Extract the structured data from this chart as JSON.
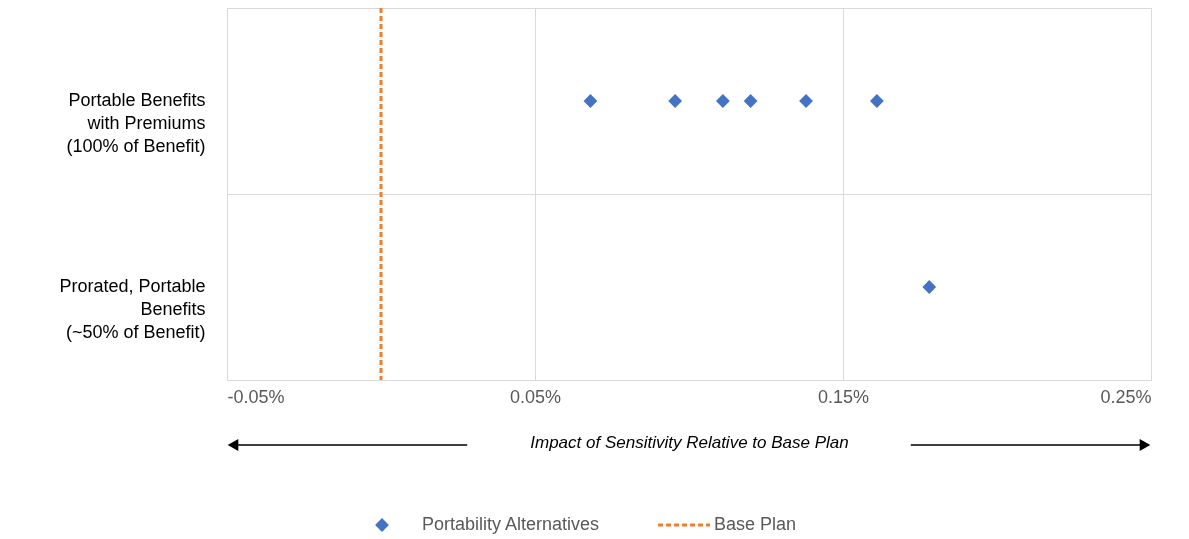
{
  "chart_data": {
    "type": "scatter",
    "categories": [
      "Portable Benefits with Premiums (100% of Benefit)",
      "Prorated, Portable Benefits (~50% of Benefit)"
    ],
    "series": [
      {
        "name": "Portability Alternatives",
        "color": "#4472c4",
        "values": [
          0.068,
          0.0955,
          0.111,
          0.12,
          0.138,
          0.161,
          0.178
        ],
        "x": [
          "Portable Benefits with Premiums (100% of Benefit)",
          "Portable Benefits with Premiums (100% of Benefit)",
          "Portable Benefits with Premiums (100% of Benefit)",
          "Portable Benefits with Premiums (100% of Benefit)",
          "Portable Benefits with Premiums (100% of Benefit)",
          "Portable Benefits with Premiums (100% of Benefit)",
          "Prorated, Portable Benefits (~50% of Benefit)"
        ]
      }
    ],
    "orientation": "horizontal",
    "xlabel": "Impact of Sensitivity Relative to Base Plan",
    "xlim": [
      -0.05,
      0.25
    ],
    "xticks": [
      {
        "value": -0.05,
        "label": "-0.05%"
      },
      {
        "value": 0.05,
        "label": "0.05%"
      },
      {
        "value": 0.15,
        "label": "0.15%"
      },
      {
        "value": 0.25,
        "label": "0.25%"
      }
    ],
    "ref_lines": [
      {
        "axis": "x",
        "value": 0.0,
        "label": "Base Plan",
        "color": "#ed7d31",
        "line_style": "dashed"
      }
    ],
    "marker": "diamond",
    "grid": true,
    "legend": "bottom"
  }
}
